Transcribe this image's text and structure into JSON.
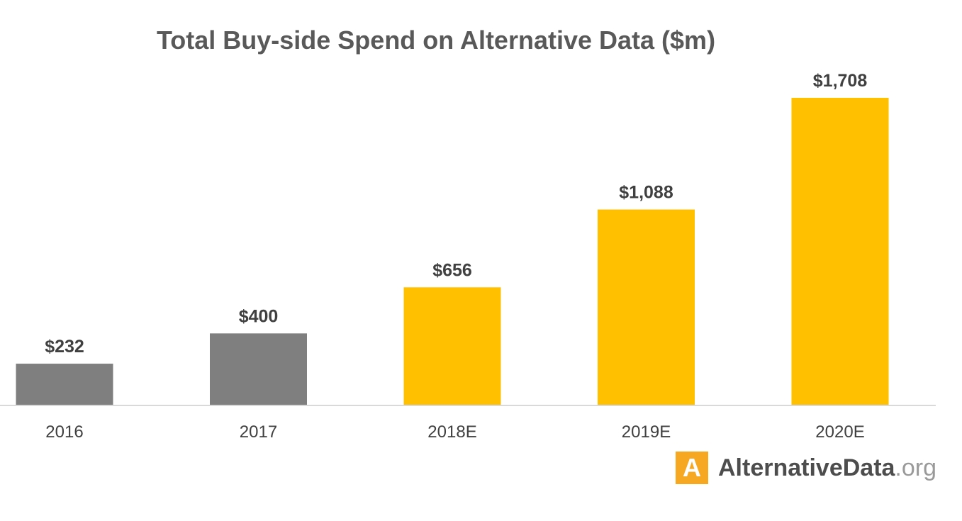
{
  "chart_data": {
    "type": "bar",
    "title": "Total Buy-side Spend on Alternative Data ($m)",
    "categories": [
      "2016",
      "2017",
      "2018E",
      "2019E",
      "2020E"
    ],
    "values": [
      232,
      400,
      656,
      1088,
      1708
    ],
    "value_labels": [
      "$232",
      "$400",
      "$656",
      "$1,088",
      "$1,708"
    ],
    "series_colors": [
      "#7f7f7f",
      "#7f7f7f",
      "#ffc000",
      "#ffc000",
      "#ffc000"
    ],
    "xlabel": "",
    "ylabel": "",
    "ylim": [
      0,
      1708
    ],
    "grid": false,
    "legend": "none"
  },
  "branding": {
    "logo_letter": "A",
    "name": "AlternativeData",
    "tld": ".org",
    "accent_color": "#f7a823"
  }
}
